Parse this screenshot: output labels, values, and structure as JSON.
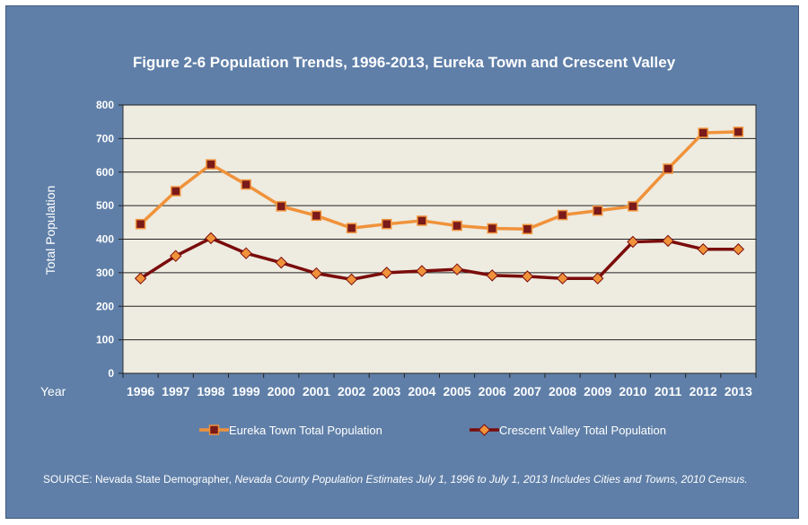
{
  "chart_data": {
    "type": "line",
    "title": "Figure 2-6 Population Trends, 1996-2013, Eureka Town and Crescent Valley",
    "xlabel": "Year",
    "ylabel": "Total Population",
    "ylim": [
      0,
      800
    ],
    "yticks": [
      "0",
      "100",
      "200",
      "300",
      "400",
      "500",
      "600",
      "700",
      "800"
    ],
    "grid": true,
    "legend_position": "bottom",
    "categories": [
      "1996",
      "1997",
      "1998",
      "1999",
      "2000",
      "2001",
      "2002",
      "2003",
      "2004",
      "2005",
      "2006",
      "2007",
      "2008",
      "2009",
      "2010",
      "2011",
      "2012",
      "2013"
    ],
    "series": [
      {
        "name": "Eureka Town Total Population",
        "line_color": "#f0923a",
        "marker_color": "#7a1a1a",
        "values": [
          445,
          543,
          623,
          563,
          498,
          470,
          433,
          445,
          455,
          440,
          432,
          430,
          472,
          485,
          498,
          610,
          717,
          720
        ]
      },
      {
        "name": "Crescent Valley Total Population",
        "line_color": "#7a0c0c",
        "marker_color": "#f0923a",
        "values": [
          283,
          350,
          403,
          358,
          330,
          298,
          280,
          300,
          305,
          310,
          292,
          289,
          283,
          283,
          392,
          395,
          370,
          370
        ]
      }
    ]
  },
  "colors": {
    "frame": "#5f7fa8",
    "plot_bg": "#eeebe0",
    "text": "#ffffff"
  },
  "source": {
    "prefix": "SOURCE: Nevada State Demographer, ",
    "italic": "Nevada County Population Estimates July 1, 1996 to July 1, 2013 Includes Cities and Towns, 2010 Census."
  }
}
